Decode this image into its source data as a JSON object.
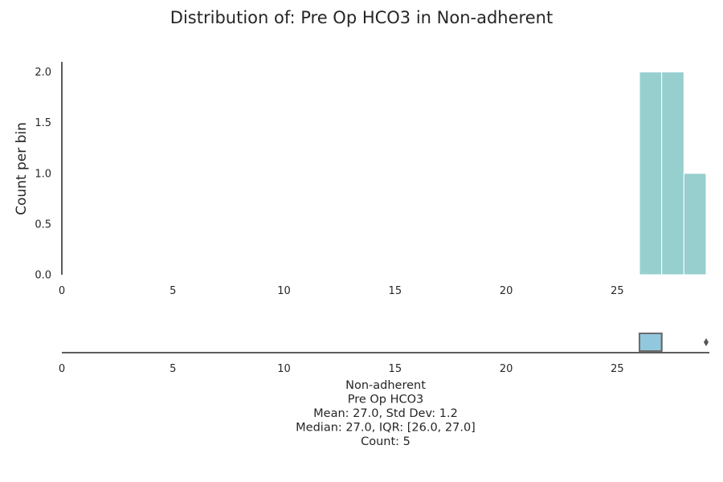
{
  "chart_data": [
    {
      "type": "bar",
      "title": "Distribution of: Pre Op HCO3 in Non-adherent",
      "ylabel": "Count per bin",
      "xlim": [
        0,
        29
      ],
      "ylim": [
        0,
        2.1
      ],
      "x_ticks": [
        0,
        5,
        10,
        15,
        20,
        25
      ],
      "y_ticks": [
        0.0,
        0.5,
        1.0,
        1.5,
        2.0
      ],
      "y_tick_labels": [
        "0.0",
        "0.5",
        "1.0",
        "1.5",
        "2.0"
      ],
      "bins": [
        {
          "x0": 26,
          "x1": 27,
          "count": 2
        },
        {
          "x0": 27,
          "x1": 28,
          "count": 2
        },
        {
          "x0": 28,
          "x1": 29,
          "count": 1
        }
      ],
      "color": "#97cfcf",
      "grid": false
    },
    {
      "type": "box",
      "xlim": [
        0,
        29
      ],
      "x_ticks": [
        0,
        5,
        10,
        15,
        20,
        25
      ],
      "q1": 26.0,
      "median": 27.0,
      "q3": 27.0,
      "whisker_low": 26.0,
      "whisker_high": 27.0,
      "outliers": [
        29.0
      ],
      "color": "#91c8de",
      "stats_lines": [
        "Non-adherent",
        "Pre Op HCO3",
        "Mean: 27.0, Std Dev: 1.2",
        "Median: 27.0, IQR: [26.0, 27.0]",
        "Count: 5"
      ]
    }
  ]
}
